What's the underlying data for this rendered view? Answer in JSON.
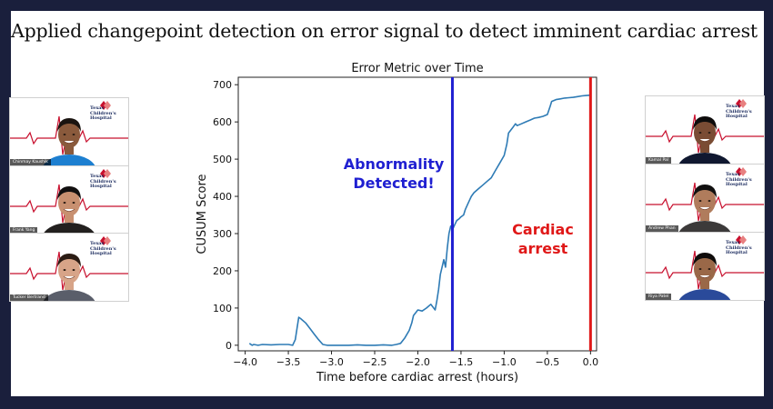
{
  "slide_title": "Applied changepoint detection on error signal to detect imminent cardiac arrest",
  "colors": {
    "background": "#1a1f3c",
    "line": "#2e7bb5",
    "abnormality": "#1f1fd1",
    "arrest": "#e01818"
  },
  "chart_data": {
    "type": "line",
    "title": "Error Metric over Time",
    "xlabel": "Time before cardiac arrest (hours)",
    "ylabel": "CUSUM Score",
    "xlim": [
      -4.08,
      0.07
    ],
    "ylim": [
      -15,
      720
    ],
    "xticks": [
      -4.0,
      -3.5,
      -3.0,
      -2.5,
      -2.0,
      -1.5,
      -1.0,
      -0.5,
      0.0
    ],
    "xtick_labels": [
      "−4.0",
      "−3.5",
      "−3.0",
      "−2.5",
      "−2.0",
      "−1.5",
      "−1.0",
      "−0.5",
      "0.0"
    ],
    "yticks": [
      0,
      100,
      200,
      300,
      400,
      500,
      600,
      700
    ],
    "ytick_labels": [
      "0",
      "100",
      "200",
      "300",
      "400",
      "500",
      "600",
      "700"
    ],
    "grid": false,
    "x": [
      -3.95,
      -3.92,
      -3.9,
      -3.85,
      -3.8,
      -3.7,
      -3.6,
      -3.5,
      -3.45,
      -3.42,
      -3.4,
      -3.38,
      -3.36,
      -3.3,
      -3.25,
      -3.2,
      -3.15,
      -3.1,
      -3.05,
      -3.0,
      -2.9,
      -2.8,
      -2.7,
      -2.6,
      -2.5,
      -2.4,
      -2.3,
      -2.25,
      -2.2,
      -2.15,
      -2.1,
      -2.07,
      -2.05,
      -2.0,
      -1.95,
      -1.9,
      -1.85,
      -1.8,
      -1.78,
      -1.76,
      -1.74,
      -1.72,
      -1.7,
      -1.68,
      -1.66,
      -1.64,
      -1.62,
      -1.6,
      -1.58,
      -1.55,
      -1.52,
      -1.5,
      -1.47,
      -1.45,
      -1.42,
      -1.4,
      -1.38,
      -1.35,
      -1.3,
      -1.25,
      -1.2,
      -1.15,
      -1.1,
      -1.05,
      -1.0,
      -0.97,
      -0.95,
      -0.9,
      -0.87,
      -0.85,
      -0.8,
      -0.75,
      -0.7,
      -0.65,
      -0.6,
      -0.55,
      -0.5,
      -0.47,
      -0.45,
      -0.4,
      -0.35,
      -0.3,
      -0.25,
      -0.2,
      -0.15,
      -0.1,
      -0.05,
      0.0
    ],
    "y": [
      5,
      0,
      2,
      0,
      2,
      1,
      2,
      2,
      0,
      15,
      45,
      75,
      72,
      60,
      45,
      30,
      15,
      2,
      0,
      0,
      0,
      0,
      1,
      0,
      0,
      1,
      0,
      2,
      5,
      20,
      40,
      60,
      80,
      95,
      92,
      100,
      110,
      95,
      120,
      150,
      190,
      210,
      230,
      210,
      260,
      300,
      320,
      310,
      320,
      335,
      340,
      345,
      350,
      365,
      380,
      390,
      400,
      410,
      420,
      430,
      440,
      450,
      470,
      490,
      510,
      540,
      570,
      585,
      595,
      590,
      595,
      600,
      605,
      610,
      612,
      615,
      620,
      640,
      655,
      660,
      662,
      664,
      665,
      666,
      668,
      670,
      671,
      672
    ],
    "vlines": [
      {
        "x": -1.6,
        "label_lines": [
          "Abnormality",
          "Detected!"
        ],
        "color": "#1f1fd1"
      },
      {
        "x": 0.0,
        "label_lines": [
          "Cardiac",
          "arrest"
        ],
        "color": "#e01818"
      }
    ]
  },
  "participants": [
    {
      "name": "Chinmay Kaushik",
      "hospital": "Texas Children's\nHospital",
      "skin": "#8a5a3c",
      "shirt": "#1d7fd0",
      "hair": "#1a1410"
    },
    {
      "name": "Frank Yang",
      "hospital": "Texas Children's\nHospital",
      "skin": "#c89070",
      "shirt": "#23201f",
      "hair": "#121010"
    },
    {
      "name": "Tucker Bertrand",
      "hospital": "Texas Children's\nHospital",
      "skin": "#d7a488",
      "shirt": "#5a5e6a",
      "hair": "#2b1c14"
    },
    {
      "name": "Kamal Pal",
      "hospital": "Texas Children's\nHospital",
      "skin": "#7a4c34",
      "shirt": "#101830",
      "hair": "#0e0c0c"
    },
    {
      "name": "Andrew Phan",
      "hospital": "Texas Children's\nHospital",
      "skin": "#b07c5c",
      "shirt": "#3c3a3a",
      "hair": "#111010"
    },
    {
      "name": "Riya Patel",
      "hospital": "Texas Children's\nHospital",
      "skin": "#9a6848",
      "shirt": "#2a4a9a",
      "hair": "#0f0c0b"
    }
  ]
}
